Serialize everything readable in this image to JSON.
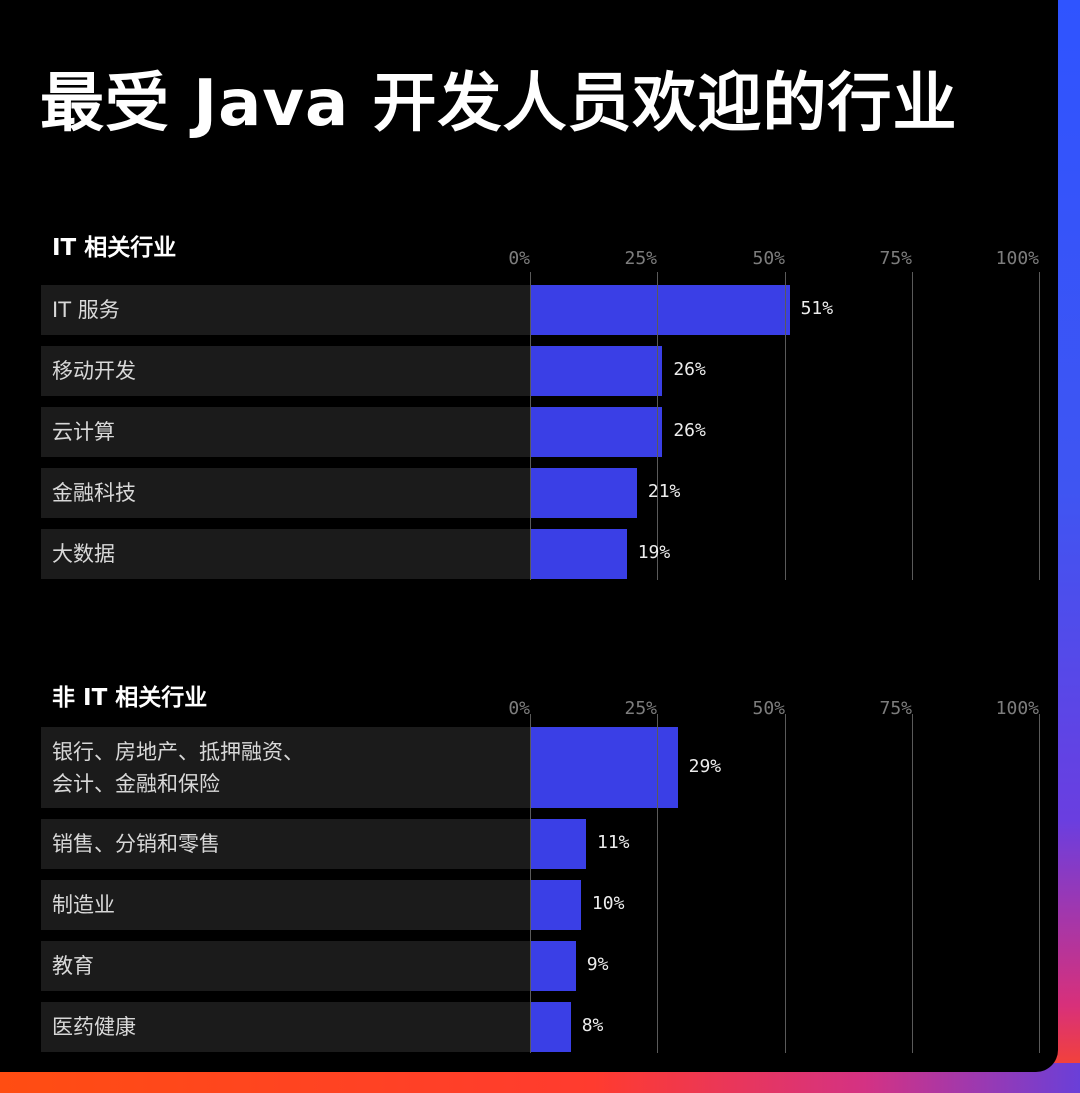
{
  "title": "最受 Java 开发人员欢迎的行业",
  "colors": {
    "bar": "#3a3fe6",
    "row_background": "#1b1b1b",
    "background": "#000000"
  },
  "chart_data": [
    {
      "type": "bar",
      "orientation": "horizontal",
      "title": "IT 相关行业",
      "xlim": [
        0,
        100
      ],
      "ticks": [
        "0%",
        "25%",
        "50%",
        "75%",
        "100%"
      ],
      "categories": [
        "IT 服务",
        "移动开发",
        "云计算",
        "金融科技",
        "大数据"
      ],
      "values": [
        51,
        26,
        26,
        21,
        19
      ],
      "value_labels": [
        "51%",
        "26%",
        "26%",
        "21%",
        "19%"
      ],
      "grid": true
    },
    {
      "type": "bar",
      "orientation": "horizontal",
      "title": "非 IT 相关行业",
      "xlim": [
        0,
        100
      ],
      "ticks": [
        "0%",
        "25%",
        "50%",
        "75%",
        "100%"
      ],
      "categories": [
        "银行、房地产、抵押融资、\n会计、金融和保险",
        "销售、分销和零售",
        "制造业",
        "教育",
        "医药健康"
      ],
      "values": [
        29,
        11,
        10,
        9,
        8
      ],
      "value_labels": [
        "29%",
        "11%",
        "10%",
        "9%",
        "8%"
      ],
      "grid": true
    }
  ]
}
